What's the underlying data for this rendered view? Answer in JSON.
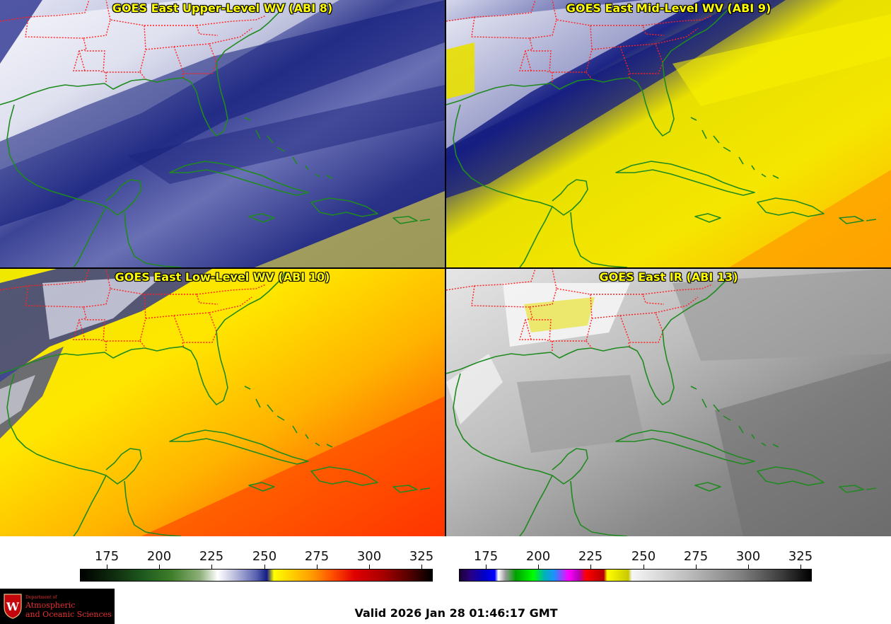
{
  "panels": [
    {
      "id": "upper",
      "title": "GOES East Upper-Level WV (ABI 8)"
    },
    {
      "id": "mid",
      "title": "GOES East Mid-Level WV (ABI 9)"
    },
    {
      "id": "low",
      "title": "GOES East Low-Level WV (ABI 10)"
    },
    {
      "id": "ir",
      "title": "GOES East IR (ABI 13)"
    }
  ],
  "colorbars": {
    "wv": {
      "ticks": [
        "175",
        "200",
        "225",
        "250",
        "275",
        "300",
        "325"
      ]
    },
    "ir": {
      "ticks": [
        "175",
        "200",
        "225",
        "250",
        "275",
        "300",
        "325"
      ]
    }
  },
  "colors": {
    "coastline": "#1f8a1f",
    "state_borders": "#ff2020",
    "title_text": "#ffff00"
  },
  "logo": {
    "line1": "Department of",
    "line2": "Atmospheric",
    "line3": "and Oceanic Sciences"
  },
  "valid_time": "Valid 2026 Jan 28 01:46:17 GMT"
}
